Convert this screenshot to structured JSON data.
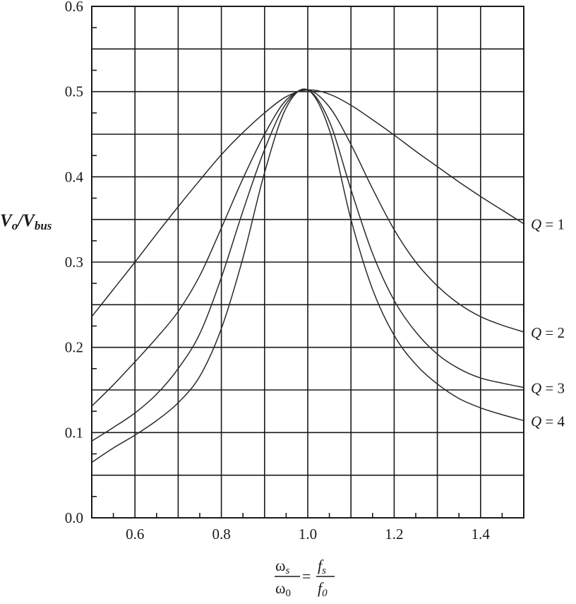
{
  "chart_data": {
    "type": "line",
    "ylabel": "Vo/Vbus",
    "ylabel_parts": {
      "base1": "V",
      "sub1": "o",
      "slash": "/",
      "base2": "V",
      "sub2": "bus"
    },
    "xlabel_parts": {
      "num_left": "ω",
      "num_left_sub": "s",
      "den_left": "ω",
      "den_left_sub": "0",
      "equals": "=",
      "num_right": "f",
      "num_right_sub": "s",
      "den_right": "f",
      "den_right_sub": "0"
    },
    "xlim": [
      0.5,
      1.5
    ],
    "ylim": [
      0.0,
      0.6
    ],
    "x_ticks": [
      "0.6",
      "0.8",
      "1.0",
      "1.2",
      "1.4"
    ],
    "y_ticks": [
      "0.0",
      "0.1",
      "0.2",
      "0.3",
      "0.4",
      "0.5",
      "0.6"
    ],
    "grid": true,
    "series": [
      {
        "name": "Q = 1",
        "label_q": "Q",
        "label_eq": "=",
        "label_val": "1",
        "x": [
          0.5,
          0.55,
          0.6,
          0.65,
          0.7,
          0.75,
          0.8,
          0.85,
          0.9,
          0.95,
          1.0,
          1.05,
          1.1,
          1.15,
          1.2,
          1.25,
          1.3,
          1.35,
          1.4,
          1.45,
          1.5
        ],
        "values": [
          0.236,
          0.268,
          0.3,
          0.333,
          0.365,
          0.396,
          0.426,
          0.452,
          0.475,
          0.494,
          0.502,
          0.497,
          0.484,
          0.467,
          0.449,
          0.43,
          0.412,
          0.394,
          0.377,
          0.361,
          0.345
        ]
      },
      {
        "name": "Q = 2",
        "label_q": "Q",
        "label_eq": "=",
        "label_val": "2",
        "x": [
          0.5,
          0.55,
          0.6,
          0.65,
          0.7,
          0.75,
          0.8,
          0.85,
          0.9,
          0.95,
          1.0,
          1.05,
          1.1,
          1.15,
          1.2,
          1.25,
          1.3,
          1.35,
          1.4,
          1.45,
          1.5
        ],
        "values": [
          0.131,
          0.156,
          0.183,
          0.211,
          0.242,
          0.284,
          0.34,
          0.398,
          0.45,
          0.49,
          0.502,
          0.482,
          0.438,
          0.386,
          0.338,
          0.3,
          0.272,
          0.251,
          0.236,
          0.226,
          0.218
        ]
      },
      {
        "name": "Q = 3",
        "label_q": "Q",
        "label_eq": "=",
        "label_val": "3",
        "x": [
          0.5,
          0.55,
          0.6,
          0.65,
          0.7,
          0.75,
          0.8,
          0.85,
          0.9,
          0.95,
          1.0,
          1.05,
          1.1,
          1.15,
          1.2,
          1.25,
          1.3,
          1.35,
          1.4,
          1.45,
          1.5
        ],
        "values": [
          0.09,
          0.106,
          0.123,
          0.145,
          0.175,
          0.216,
          0.282,
          0.36,
          0.432,
          0.486,
          0.502,
          0.465,
          0.385,
          0.31,
          0.255,
          0.218,
          0.192,
          0.175,
          0.164,
          0.158,
          0.153
        ]
      },
      {
        "name": "Q = 4",
        "label_q": "Q",
        "label_eq": "=",
        "label_val": "4",
        "x": [
          0.5,
          0.55,
          0.6,
          0.65,
          0.7,
          0.75,
          0.8,
          0.85,
          0.9,
          0.95,
          1.0,
          1.05,
          1.1,
          1.15,
          1.2,
          1.25,
          1.3,
          1.35,
          1.4,
          1.45,
          1.5
        ],
        "values": [
          0.065,
          0.082,
          0.097,
          0.114,
          0.135,
          0.166,
          0.222,
          0.305,
          0.405,
          0.481,
          0.502,
          0.455,
          0.35,
          0.268,
          0.214,
          0.18,
          0.157,
          0.14,
          0.129,
          0.121,
          0.114
        ]
      }
    ]
  }
}
